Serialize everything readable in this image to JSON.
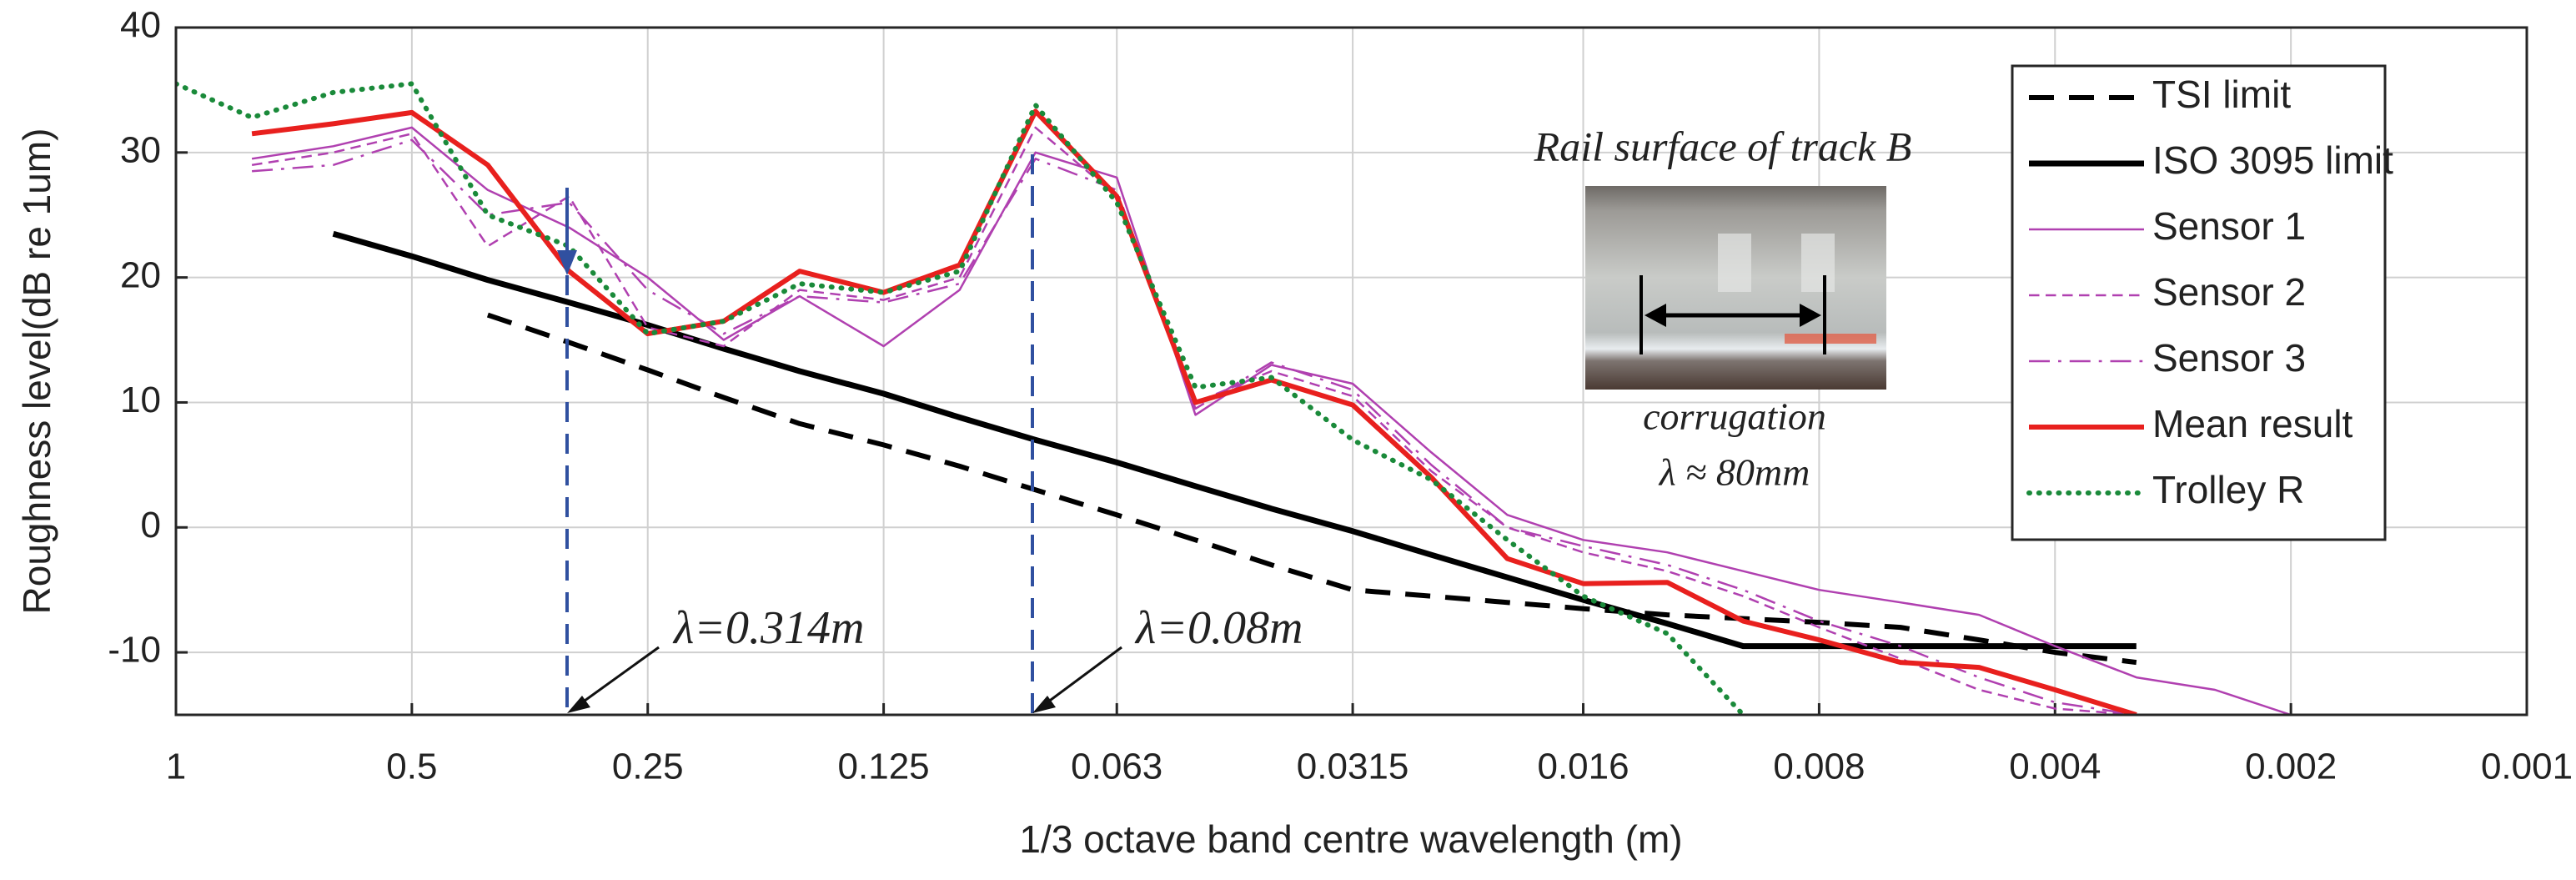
{
  "chart_data": {
    "type": "line",
    "x": [
      1,
      0.8,
      0.63,
      0.5,
      0.4,
      0.315,
      0.25,
      0.2,
      0.16,
      0.125,
      0.1,
      0.08,
      0.063,
      0.05,
      0.04,
      0.0315,
      0.025,
      0.02,
      0.016,
      0.0125,
      0.01,
      0.008,
      0.0063,
      0.005,
      0.004,
      0.00315,
      0.0025,
      0.002
    ],
    "xlabel": "1/3 octave band centre wavelength (m)",
    "ylabel": "Roughness level(dB re 1um)",
    "xscale": "log",
    "xlim": [
      1,
      0.001
    ],
    "xticks": [
      1,
      0.5,
      0.25,
      0.125,
      0.063,
      0.0315,
      0.016,
      0.008,
      0.004,
      0.002,
      0.001
    ],
    "ylim": [
      -15,
      40
    ],
    "yticks": [
      -10,
      0,
      10,
      20,
      30,
      40
    ],
    "grid": true,
    "legend": "upper right",
    "series": [
      {
        "name": "TSI limit",
        "color": "#000000",
        "style": "dashed",
        "width": 6,
        "values": [
          null,
          null,
          null,
          null,
          17,
          14.8,
          12.6,
          10.4,
          8.3,
          6.6,
          4.9,
          3,
          1,
          -1,
          -3,
          -5,
          -5.5,
          -6,
          -6.5,
          -7,
          -7.3,
          -7.6,
          -8,
          -9,
          -10,
          -10.8,
          null,
          null
        ]
      },
      {
        "name": "ISO 3095 limit",
        "color": "#000000",
        "style": "solid",
        "width": 7,
        "values": [
          null,
          null,
          23.5,
          21.7,
          19.8,
          18.0,
          16.2,
          14.3,
          12.5,
          10.7,
          8.8,
          7.0,
          5.2,
          3.3,
          1.5,
          -0.3,
          -2.2,
          -4.0,
          -5.8,
          -7.7,
          -9.5,
          -9.5,
          -9.5,
          -9.5,
          -9.5,
          -9.5,
          null,
          null
        ]
      },
      {
        "name": "Sensor 1",
        "color": "#b040b0",
        "style": "solid",
        "width": 2.5,
        "values": [
          null,
          29.5,
          30.5,
          32,
          27,
          24,
          20,
          15,
          18.5,
          14.5,
          19,
          30,
          28,
          9,
          13,
          11.5,
          6,
          1,
          -1,
          -2,
          -3.5,
          -5,
          -6,
          -7,
          -9.5,
          -12,
          -13,
          -15
        ]
      },
      {
        "name": "Sensor 2",
        "color": "#b040b0",
        "style": "dashed",
        "width": 2.5,
        "values": [
          null,
          29,
          30,
          31.5,
          22.5,
          26.5,
          16,
          14.5,
          19,
          18.2,
          20,
          32,
          26.5,
          10,
          12.5,
          10.5,
          4.5,
          0,
          -2,
          -3.5,
          -5.5,
          -8,
          -10.5,
          -13,
          -14.5,
          -15,
          null,
          null
        ]
      },
      {
        "name": "Sensor 3",
        "color": "#b040b0",
        "style": "dashdot",
        "width": 2.5,
        "values": [
          null,
          28.5,
          29,
          31,
          25,
          26,
          19,
          15.5,
          18.5,
          18,
          19.5,
          29.5,
          27,
          9.5,
          13.2,
          11,
          5,
          0,
          -1.5,
          -3,
          -5,
          -7.5,
          -9.5,
          -12,
          -14,
          -15,
          null,
          null
        ]
      },
      {
        "name": "Mean result",
        "color": "#e8201e",
        "style": "solid",
        "width": 6,
        "values": [
          null,
          31.5,
          32.3,
          33.2,
          29,
          20.5,
          15.5,
          16.5,
          20.5,
          18.8,
          21,
          33.3,
          26.5,
          10,
          11.8,
          9.8,
          4,
          -2.5,
          -4.5,
          -4.4,
          -7.5,
          -9,
          -10.8,
          -11.2,
          -13,
          -15,
          null,
          null
        ]
      },
      {
        "name": "Trolley R",
        "color": "#1a8a3a",
        "style": "dotted",
        "width": 6,
        "values": [
          35.5,
          32.8,
          34.8,
          35.5,
          25,
          22.5,
          15.5,
          16.5,
          19.5,
          18.8,
          20.5,
          33.8,
          26,
          11.2,
          12,
          7,
          3.8,
          -1,
          -5.5,
          -8.5,
          -15,
          null,
          null,
          null,
          null,
          null,
          null,
          null
        ]
      }
    ],
    "annotations": [
      "λ=0.314m",
      "λ=0.08m"
    ],
    "inset": {
      "title": "Rail surface of track B",
      "caption": "corrugation",
      "note": "λ ≈ 80mm"
    }
  }
}
